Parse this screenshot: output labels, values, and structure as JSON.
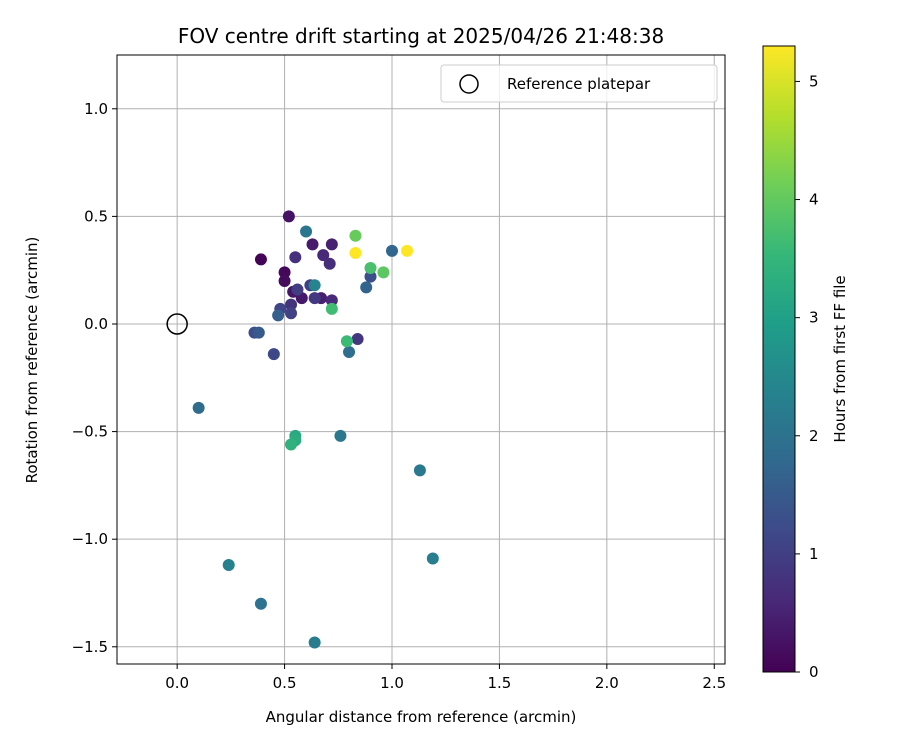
{
  "chart_data": {
    "type": "scatter",
    "title": "FOV centre drift starting at 2025/04/26 21:48:38",
    "xlabel": "Angular distance from reference (arcmin)",
    "ylabel": "Rotation from reference (arcmin)",
    "xlim": [
      -0.28,
      2.55
    ],
    "ylim": [
      -1.58,
      1.25
    ],
    "xticks": [
      0.0,
      0.5,
      1.0,
      1.5,
      2.0,
      2.5
    ],
    "xtick_labels": [
      "0.0",
      "0.5",
      "1.0",
      "1.5",
      "2.0",
      "2.5"
    ],
    "yticks": [
      1.0,
      0.5,
      0.0,
      -0.5,
      -1.0,
      -1.5
    ],
    "ytick_labels": [
      "1.0",
      "0.5",
      "0.0",
      "−0.5",
      "−1.0",
      "−1.5"
    ],
    "grid": true,
    "legend": {
      "position": "top-right",
      "entries": [
        "Reference platepar"
      ]
    },
    "reference_point": {
      "x": 0.0,
      "y": 0.0
    },
    "colorbar": {
      "label": "Hours from first FF file",
      "range": [
        0,
        5.3
      ],
      "ticks": [
        0,
        1,
        2,
        3,
        4,
        5
      ],
      "tick_labels": [
        "0",
        "1",
        "2",
        "3",
        "4",
        "5"
      ],
      "colormap": [
        "#440154",
        "#482878",
        "#3e4989",
        "#31688e",
        "#26828e",
        "#1f9e89",
        "#35b779",
        "#6ece58",
        "#b5de2b",
        "#fde725"
      ]
    },
    "points": [
      {
        "x": 0.39,
        "y": 0.3,
        "hours": 0.05
      },
      {
        "x": 0.5,
        "y": 0.24,
        "hours": 0.1
      },
      {
        "x": 0.5,
        "y": 0.2,
        "hours": 0.15
      },
      {
        "x": 0.52,
        "y": 0.5,
        "hours": 0.25
      },
      {
        "x": 0.54,
        "y": 0.15,
        "hours": 0.3
      },
      {
        "x": 0.58,
        "y": 0.12,
        "hours": 0.35
      },
      {
        "x": 0.63,
        "y": 0.37,
        "hours": 0.4
      },
      {
        "x": 0.67,
        "y": 0.12,
        "hours": 0.45
      },
      {
        "x": 0.72,
        "y": 0.37,
        "hours": 0.5
      },
      {
        "x": 0.68,
        "y": 0.32,
        "hours": 0.6
      },
      {
        "x": 0.72,
        "y": 0.11,
        "hours": 0.65
      },
      {
        "x": 0.71,
        "y": 0.28,
        "hours": 0.7
      },
      {
        "x": 0.55,
        "y": 0.31,
        "hours": 0.75
      },
      {
        "x": 0.53,
        "y": 0.09,
        "hours": 0.8
      },
      {
        "x": 0.84,
        "y": -0.07,
        "hours": 0.85
      },
      {
        "x": 0.64,
        "y": 0.12,
        "hours": 0.9
      },
      {
        "x": 0.56,
        "y": 0.16,
        "hours": 0.95
      },
      {
        "x": 0.62,
        "y": 0.18,
        "hours": 1.0
      },
      {
        "x": 0.53,
        "y": 0.05,
        "hours": 1.05
      },
      {
        "x": 0.48,
        "y": 0.07,
        "hours": 1.1
      },
      {
        "x": 0.45,
        "y": -0.14,
        "hours": 1.15
      },
      {
        "x": 0.36,
        "y": -0.04,
        "hours": 1.25
      },
      {
        "x": 0.9,
        "y": 0.22,
        "hours": 1.3
      },
      {
        "x": 0.38,
        "y": -0.04,
        "hours": 1.5
      },
      {
        "x": 0.47,
        "y": 0.04,
        "hours": 1.6
      },
      {
        "x": 0.88,
        "y": 0.17,
        "hours": 1.7
      },
      {
        "x": 1.0,
        "y": 0.34,
        "hours": 1.75
      },
      {
        "x": 0.1,
        "y": -0.39,
        "hours": 1.85
      },
      {
        "x": 0.8,
        "y": -0.13,
        "hours": 1.9
      },
      {
        "x": 0.39,
        "y": -1.3,
        "hours": 2.0
      },
      {
        "x": 0.6,
        "y": 0.43,
        "hours": 2.05
      },
      {
        "x": 0.76,
        "y": -0.52,
        "hours": 2.1
      },
      {
        "x": 1.13,
        "y": -0.68,
        "hours": 2.15
      },
      {
        "x": 0.64,
        "y": -1.48,
        "hours": 2.2
      },
      {
        "x": 1.19,
        "y": -1.09,
        "hours": 2.25
      },
      {
        "x": 0.24,
        "y": -1.12,
        "hours": 2.3
      },
      {
        "x": 0.64,
        "y": 0.18,
        "hours": 2.4
      },
      {
        "x": 0.55,
        "y": -0.52,
        "hours": 3.2
      },
      {
        "x": 0.55,
        "y": -0.54,
        "hours": 3.3
      },
      {
        "x": 0.53,
        "y": -0.56,
        "hours": 3.4
      },
      {
        "x": 0.79,
        "y": -0.08,
        "hours": 3.6
      },
      {
        "x": 0.72,
        "y": 0.07,
        "hours": 3.65
      },
      {
        "x": 0.9,
        "y": 0.26,
        "hours": 3.75
      },
      {
        "x": 0.96,
        "y": 0.24,
        "hours": 3.95
      },
      {
        "x": 0.83,
        "y": 0.41,
        "hours": 4.05
      },
      {
        "x": 0.83,
        "y": 0.33,
        "hours": 5.3
      },
      {
        "x": 1.07,
        "y": 0.34,
        "hours": 5.3
      }
    ]
  }
}
